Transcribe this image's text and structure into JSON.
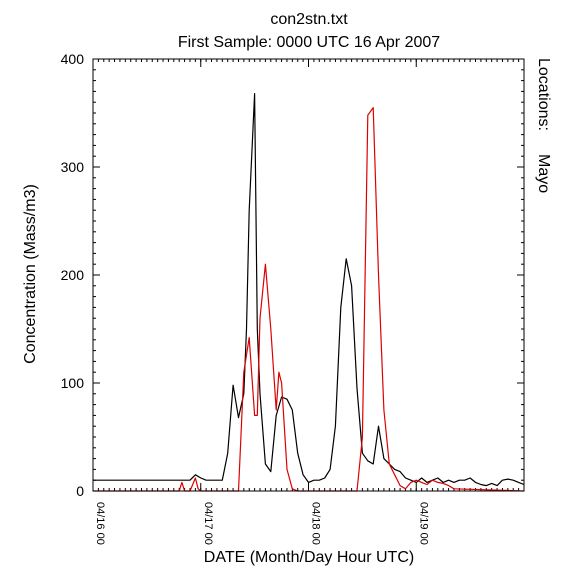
{
  "chart_data": {
    "type": "line",
    "title": "con2stn.txt",
    "subtitle": "First Sample: 0000 UTC 16 Apr 2007",
    "xlabel": "DATE (Month/Day Hour UTC)",
    "ylabel": "Concentration (Mass/m3)",
    "legend_title": "Locations:",
    "xlim": [
      0,
      80
    ],
    "ylim": [
      0,
      400
    ],
    "y_ticks": [
      0,
      100,
      200,
      300,
      400
    ],
    "x_ticks": [
      {
        "value": 0,
        "label": "04/16 00"
      },
      {
        "value": 20,
        "label": "04/17 00"
      },
      {
        "value": 40,
        "label": "04/18 00"
      },
      {
        "value": 60,
        "label": "04/19 00"
      }
    ],
    "grid": false,
    "series": [
      {
        "name": "",
        "color": "#000000",
        "x": [
          0,
          18,
          19,
          20,
          21,
          22,
          23,
          24,
          25,
          26,
          27,
          28,
          28.5,
          29,
          30,
          30.5,
          31,
          32,
          33,
          34,
          35,
          36,
          37,
          38,
          39,
          40,
          41,
          42,
          43,
          44,
          45,
          46,
          47,
          48,
          49,
          50,
          51,
          52,
          53,
          54,
          55,
          56,
          57,
          58,
          59,
          60,
          61,
          62,
          63,
          64,
          65,
          66,
          67,
          68,
          69,
          70,
          71,
          72,
          73,
          74,
          75,
          76,
          77,
          78,
          79,
          80
        ],
        "y": [
          10,
          10,
          15,
          12,
          10,
          10,
          10,
          10,
          35,
          98,
          68,
          90,
          150,
          260,
          368,
          150,
          90,
          25,
          18,
          70,
          87,
          85,
          75,
          35,
          15,
          8,
          10,
          10,
          12,
          20,
          60,
          170,
          215,
          190,
          95,
          35,
          28,
          25,
          60,
          30,
          25,
          20,
          18,
          12,
          10,
          8,
          12,
          8,
          10,
          12,
          8,
          10,
          8,
          10,
          10,
          12,
          8,
          6,
          5,
          7,
          5,
          10,
          11,
          10,
          8,
          6
        ]
      },
      {
        "name": "Mayo",
        "color": "#dd0000",
        "x": [
          0,
          16,
          16.5,
          17,
          18,
          19,
          19.5,
          20,
          21,
          27,
          28,
          29,
          30,
          30.5,
          31,
          32,
          33,
          34,
          34.5,
          35,
          35.5,
          36,
          37,
          38,
          47,
          49,
          50,
          51,
          52,
          53,
          54,
          55,
          56,
          57,
          58,
          59,
          60,
          61,
          62,
          63,
          64,
          65,
          66,
          67,
          80
        ],
        "y": [
          0,
          0,
          8,
          0,
          0,
          12,
          2,
          0,
          0,
          0,
          110,
          142,
          70,
          70,
          160,
          210,
          150,
          75,
          110,
          100,
          60,
          20,
          2,
          0,
          0,
          0,
          50,
          348,
          355,
          200,
          75,
          25,
          15,
          5,
          2,
          8,
          10,
          8,
          6,
          10,
          8,
          7,
          5,
          2,
          0
        ]
      }
    ]
  }
}
